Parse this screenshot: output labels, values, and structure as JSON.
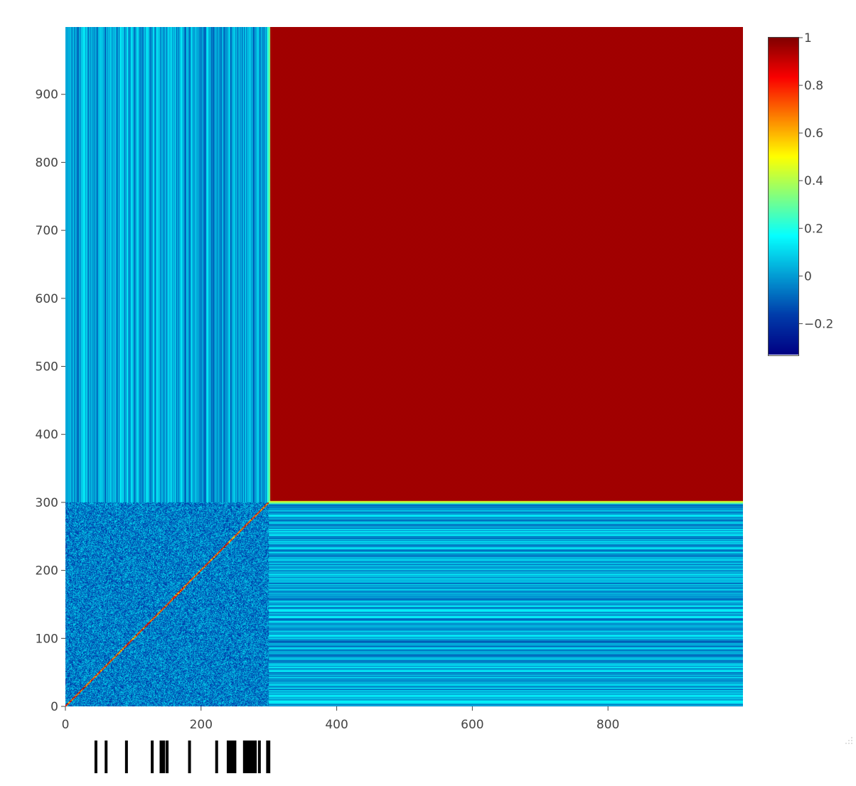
{
  "chart_data": {
    "type": "heatmap",
    "title": "",
    "xlabel": "",
    "ylabel": "",
    "x_range": [
      0,
      999
    ],
    "y_range": [
      0,
      999
    ],
    "x_ticks": [
      {
        "value": 0,
        "label": "0"
      },
      {
        "value": 200,
        "label": "200"
      },
      {
        "value": 400,
        "label": "400"
      },
      {
        "value": 600,
        "label": "600"
      },
      {
        "value": 800,
        "label": "800"
      }
    ],
    "y_ticks": [
      {
        "value": 0,
        "label": "0"
      },
      {
        "value": 100,
        "label": "100"
      },
      {
        "value": 200,
        "label": "200"
      },
      {
        "value": 300,
        "label": "300"
      },
      {
        "value": 400,
        "label": "400"
      },
      {
        "value": 500,
        "label": "500"
      },
      {
        "value": 600,
        "label": "600"
      },
      {
        "value": 700,
        "label": "700"
      },
      {
        "value": 800,
        "label": "800"
      },
      {
        "value": 900,
        "label": "900"
      }
    ],
    "regions": [
      {
        "name": "noise block",
        "x": [
          0,
          300
        ],
        "y": [
          0,
          300
        ],
        "typical_value": 0.0,
        "diagonal_value": 1.0
      },
      {
        "name": "vertical stripes",
        "x": [
          0,
          300
        ],
        "y": [
          300,
          999
        ],
        "typical_value": 0.05
      },
      {
        "name": "horizontal stripes",
        "x": [
          300,
          999
        ],
        "y": [
          0,
          300
        ],
        "typical_value": 0.05
      },
      {
        "name": "saturated block",
        "x": [
          300,
          999
        ],
        "y": [
          300,
          999
        ],
        "typical_value": 0.95
      }
    ],
    "colorscale": "jet",
    "colorbar": {
      "range": [
        -0.33,
        1.0
      ],
      "ticks": [
        {
          "value": 1.0,
          "label": "1"
        },
        {
          "value": 0.8,
          "label": "0.8"
        },
        {
          "value": 0.6,
          "label": "0.6"
        },
        {
          "value": 0.4,
          "label": "0.4"
        },
        {
          "value": 0.2,
          "label": "0.2"
        },
        {
          "value": 0.0,
          "label": "0"
        },
        {
          "value": -0.2,
          "label": "−0.2"
        }
      ]
    },
    "rug_marks_x": [
      45,
      60,
      90,
      128,
      141,
      145,
      150,
      183,
      223,
      240,
      244,
      248,
      264,
      270,
      275,
      280,
      286,
      300
    ],
    "rug_spans_x": [
      [
        240,
        252
      ],
      [
        262,
        280
      ],
      [
        296,
        301
      ]
    ]
  }
}
